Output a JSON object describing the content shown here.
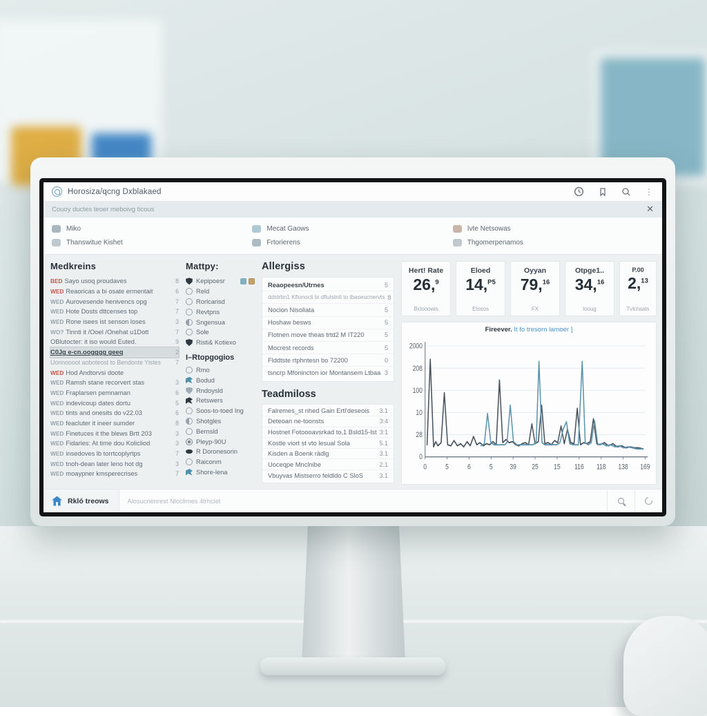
{
  "window": {
    "title": "Horosiza/qcng Dxblakaed",
    "subtitle": "Couoy ductes teoer meboivg ticous",
    "close_label": "✕",
    "kebab_label": "⋮"
  },
  "menu": {
    "items": [
      {
        "icon": "user-icon",
        "color": "#9aacb5",
        "label": "Miko"
      },
      {
        "icon": "hand-icon",
        "color": "#b4c0c6",
        "label": "Thanswitue Kishet"
      },
      {
        "icon": "grid-icon",
        "color": "#9fc0cb",
        "label": "Mecat Gaows"
      },
      {
        "icon": "layers-icon",
        "color": "#9fb0ba",
        "label": "Frtorierens"
      },
      {
        "icon": "flag-icon",
        "color": "#c0a79a",
        "label": "Ivte Netsowas"
      },
      {
        "icon": "doc-icon",
        "color": "#b4c0c6",
        "label": "Thgomerpenamos"
      }
    ]
  },
  "medications": {
    "header": "Medkreins",
    "items": [
      {
        "tag": "BED",
        "tag_color": "#c4554d",
        "text": "Sayo usoq proudaves",
        "count": "8",
        "cls": ""
      },
      {
        "tag": "WED",
        "tag_color": "#c4554d",
        "text": "Reaoricas a bi osate ermentait",
        "count": "6",
        "cls": ""
      },
      {
        "tag": "WED",
        "tag_color": "#98a3ab",
        "text": "Aurovesende henivencs opg",
        "count": "7",
        "cls": ""
      },
      {
        "tag": "WED",
        "tag_color": "#98a3ab",
        "text": "Hote Dosts dttcenses top",
        "count": "7",
        "cls": ""
      },
      {
        "tag": "WED",
        "tag_color": "#98a3ab",
        "text": "Rone isees ist senson loses",
        "count": "3",
        "cls": ""
      },
      {
        "tag": "WO?",
        "tag_color": "#98a3ab",
        "text": "Tinnti it /Ooel /Onehat u1Dott",
        "count": "7",
        "cls": ""
      },
      {
        "tag": "",
        "tag_color": "#98a3ab",
        "text": "OBlutocter: it iso would Euted.",
        "count": "9",
        "cls": ""
      },
      {
        "tag": "",
        "tag_color": "#98a3ab",
        "text": "C0Jg e-cn.oogggg geeq",
        "count": "2",
        "cls": "hl"
      },
      {
        "tag": "",
        "tag_color": "#98a3ab",
        "text": "Uonnoooot aoboteost to Bendonte Yistes",
        "count": "7",
        "cls": "dim"
      },
      {
        "tag": "WED",
        "tag_color": "#c4554d",
        "text": "Hod Andtorvsi doote",
        "count": "",
        "cls": ""
      },
      {
        "tag": "WED",
        "tag_color": "#98a3ab",
        "text": "Ramsh stane recorvert stas",
        "count": "3",
        "cls": ""
      },
      {
        "tag": "WED",
        "tag_color": "#98a3ab",
        "text": "Fraplarsen pemnaman",
        "count": "6",
        "cls": ""
      },
      {
        "tag": "WED",
        "tag_color": "#98a3ab",
        "text": "indevicoup dates dortu",
        "count": "5",
        "cls": ""
      },
      {
        "tag": "WED",
        "tag_color": "#98a3ab",
        "text": "tints and onesits do v22.03",
        "count": "6",
        "cls": ""
      },
      {
        "tag": "WED",
        "tag_color": "#98a3ab",
        "text": "feacluter it ineer sumder",
        "count": "8",
        "cls": ""
      },
      {
        "tag": "WED",
        "tag_color": "#98a3ab",
        "text": "Finetuces it the blews Brtt 203",
        "count": "3",
        "cls": ""
      },
      {
        "tag": "WED",
        "tag_color": "#98a3ab",
        "text": "Fidaries: At time dou Kolicliod",
        "count": "3",
        "cls": ""
      },
      {
        "tag": "WED",
        "tag_color": "#98a3ab",
        "text": "insedoves lb torrtcoplyrtps",
        "count": "7",
        "cls": ""
      },
      {
        "tag": "WED",
        "tag_color": "#98a3ab",
        "text": "tnoh-dean later leno hot dg",
        "count": "3",
        "cls": ""
      },
      {
        "tag": "WED",
        "tag_color": "#98a3ab",
        "text": "moaypner kmsperecrises",
        "count": "7",
        "cls": ""
      }
    ]
  },
  "mattyp": {
    "header": "Mattpy:",
    "group1": [
      {
        "icon": "i-shield",
        "label": "Kepipoesr",
        "badges": true
      },
      {
        "icon": "i-circle",
        "label": "Reld",
        "badges": false
      },
      {
        "icon": "i-circle",
        "label": "Rorlcarisd",
        "badges": false
      },
      {
        "icon": "i-circle",
        "label": "Revtpns",
        "badges": false
      },
      {
        "icon": "i-half",
        "label": "Sngensua",
        "badges": false
      },
      {
        "icon": "i-circle",
        "label": "Sole",
        "badges": false
      },
      {
        "icon": "i-shield",
        "label": "Risti& Kotiexo",
        "badges": false
      }
    ],
    "subheader": "I–Rtopgogios",
    "group2": [
      {
        "icon": "i-circle",
        "label": "Rmo",
        "badges": false
      },
      {
        "icon": "i-bird",
        "label": "Bodud",
        "badges": false
      },
      {
        "icon": "i-shield-o",
        "label": "Rndoysld",
        "badges": false
      },
      {
        "icon": "i-bird-dark",
        "label": "Retswers",
        "badges": false
      },
      {
        "icon": "i-circle",
        "label": "Soos-to-toed Ing",
        "badges": false
      },
      {
        "icon": "i-half",
        "label": "Shotgles",
        "badges": false
      },
      {
        "icon": "i-circle",
        "label": "Bernsld",
        "badges": false
      },
      {
        "icon": "i-gear",
        "label": "Pleyp-90U",
        "badges": false
      },
      {
        "icon": "i-eye",
        "label": "R Doronesorin",
        "badges": false
      },
      {
        "icon": "i-circle",
        "label": "Raiconm",
        "badges": false
      },
      {
        "icon": "i-bird",
        "label": "Shore-lena",
        "badges": false
      }
    ]
  },
  "allergies": {
    "header": "Allergiss",
    "items": [
      {
        "text": "Reaopeesn/Utrnes",
        "count": "5",
        "cls": "b"
      },
      {
        "text": "ddstrbn1 Kflonocti bi dflutstntl to tbaseucnervts",
        "count": "8",
        "cls": "s"
      },
      {
        "text": "Nocion Nisoliata",
        "count": "5",
        "cls": ""
      },
      {
        "text": "Hoshaw besws",
        "count": "5",
        "cls": ""
      },
      {
        "text": "Flotnen move theas trtd2 M IT220",
        "count": "5",
        "cls": ""
      },
      {
        "text": "Mocrest records",
        "count": "5",
        "cls": ""
      },
      {
        "text": "Flddtste rtphntesn bo 72200",
        "count": "0",
        "cls": ""
      },
      {
        "text": "tsncrp Mfonincton ior Montansem Ltbaa",
        "count": "3",
        "cls": ""
      }
    ]
  },
  "teadmiloss": {
    "header": "Teadmiloss",
    "items": [
      {
        "text": "Falremes_st nhed Gain Ertl'deseois",
        "count": "3.1",
        "cls": ""
      },
      {
        "text": "Deteoan ne-toonsts",
        "count": "3:4",
        "cls": ""
      },
      {
        "text": "Hostnet Fotoooavsrkad to,1 Bsld15-lst",
        "count": "3:1",
        "cls": ""
      },
      {
        "text": "Kostle viort st vto lesual Sola",
        "count": "5.1",
        "cls": ""
      },
      {
        "text": "Kisden a Boenk rädlg",
        "count": "3.1",
        "cls": ""
      },
      {
        "text": "Uoceqpe Mnclnibe",
        "count": "2.1",
        "cls": ""
      },
      {
        "text": "Vbuyvas Mistserro feldldo C SloS",
        "count": "3.1",
        "cls": ""
      }
    ]
  },
  "vitals": [
    {
      "label": "Hert! Rate",
      "value": "26,",
      "sup": "9",
      "sub": "Bxtooowis",
      "label_cls": ""
    },
    {
      "label": "Eloed",
      "value": "14,",
      "sup": "P5",
      "sub": "Etosos",
      "label_cls": ""
    },
    {
      "label": "Oyyan",
      "value": "79,",
      "sup": "16",
      "sub": "FX",
      "label_cls": ""
    },
    {
      "label": "Otpge1..",
      "value": "34,",
      "sup": "16",
      "sub": "tooug",
      "label_cls": ""
    },
    {
      "label": "P.00",
      "value": "2,",
      "sup": "13",
      "sub": "Tvlcnsats",
      "label_cls": "small"
    }
  ],
  "chart_data": {
    "type": "line",
    "title_dark": "Fireever.",
    "title_blue": "It fo tresorn lamoer ]",
    "y_ticks": [
      "2000",
      "208",
      "100",
      "10",
      "28",
      "0"
    ],
    "x_ticks": [
      "0",
      "5",
      "6",
      "5",
      "39",
      "25",
      "15",
      "116",
      "118",
      "138",
      "169"
    ],
    "ylim": [
      0,
      2000
    ],
    "grid": true,
    "legend": "none",
    "series": [
      {
        "name": "dark",
        "color": "#46525c",
        "points": [
          [
            0,
            10
          ],
          [
            1.5,
            92
          ],
          [
            3,
            8
          ],
          [
            4,
            13
          ],
          [
            5,
            9
          ],
          [
            6.5,
            12
          ],
          [
            8,
            60
          ],
          [
            9.5,
            10
          ],
          [
            11,
            9
          ],
          [
            12.5,
            14
          ],
          [
            14,
            9
          ],
          [
            15.5,
            11
          ],
          [
            17,
            8
          ],
          [
            18.5,
            13
          ],
          [
            20,
            9
          ],
          [
            21.5,
            18
          ],
          [
            23,
            10
          ],
          [
            24.5,
            12
          ],
          [
            26,
            9
          ],
          [
            27.5,
            11
          ],
          [
            29,
            10
          ],
          [
            30.5,
            13
          ],
          [
            32,
            10
          ],
          [
            33.5,
            72
          ],
          [
            35,
            12
          ],
          [
            36.5,
            15
          ],
          [
            38,
            12
          ],
          [
            39.5,
            13
          ],
          [
            41,
            10
          ],
          [
            42.5,
            9
          ],
          [
            44,
            11
          ],
          [
            45.5,
            12
          ],
          [
            47,
            10
          ],
          [
            48.5,
            30
          ],
          [
            50,
            11
          ],
          [
            51.5,
            13
          ],
          [
            53,
            48
          ],
          [
            54.5,
            11
          ],
          [
            56,
            12
          ],
          [
            57.5,
            10
          ],
          [
            59,
            14
          ],
          [
            60.5,
            12
          ],
          [
            62,
            28
          ],
          [
            63.5,
            11
          ],
          [
            65,
            25
          ],
          [
            66.5,
            12
          ],
          [
            68,
            11
          ],
          [
            69.5,
            45
          ],
          [
            71,
            10
          ],
          [
            72.5,
            12
          ],
          [
            74,
            11
          ],
          [
            75.5,
            13
          ],
          [
            77,
            35
          ],
          [
            78.5,
            11
          ],
          [
            80,
            10
          ],
          [
            82,
            12
          ],
          [
            84,
            9
          ],
          [
            86,
            11
          ],
          [
            88,
            8
          ],
          [
            90,
            9
          ],
          [
            92,
            7
          ],
          [
            94,
            8
          ],
          [
            96,
            7
          ],
          [
            98,
            7
          ],
          [
            100,
            6
          ]
        ]
      },
      {
        "name": "teal",
        "color": "#5b93ad",
        "points": [
          [
            25,
            9
          ],
          [
            26.5,
            11
          ],
          [
            28,
            40
          ],
          [
            29.5,
            12
          ],
          [
            31,
            10
          ],
          [
            36,
            10
          ],
          [
            37,
            12
          ],
          [
            38.5,
            48
          ],
          [
            40,
            13
          ],
          [
            41.5,
            10
          ],
          [
            49,
            10
          ],
          [
            50.5,
            12
          ],
          [
            51.8,
            90
          ],
          [
            53.2,
            12
          ],
          [
            54.5,
            10
          ],
          [
            60,
            10
          ],
          [
            61.5,
            12
          ],
          [
            63,
            25
          ],
          [
            64.5,
            32
          ],
          [
            66,
            11
          ],
          [
            67.5,
            10
          ],
          [
            70,
            10
          ],
          [
            71.8,
            90
          ],
          [
            73.2,
            12
          ],
          [
            74.5,
            10
          ],
          [
            76,
            12
          ],
          [
            77.5,
            33
          ],
          [
            79,
            10
          ],
          [
            81,
            11
          ],
          [
            83,
            9
          ],
          [
            85,
            10
          ],
          [
            87,
            8
          ],
          [
            89,
            9
          ],
          [
            91,
            7
          ],
          [
            93,
            8
          ],
          [
            95,
            7
          ],
          [
            97,
            6
          ],
          [
            100,
            6
          ]
        ]
      }
    ]
  },
  "bottom": {
    "home_label": "Rkló treows",
    "input_placeholder": "Alosucnenrest Nloclimes 4trhciet",
    "input_value": ""
  }
}
